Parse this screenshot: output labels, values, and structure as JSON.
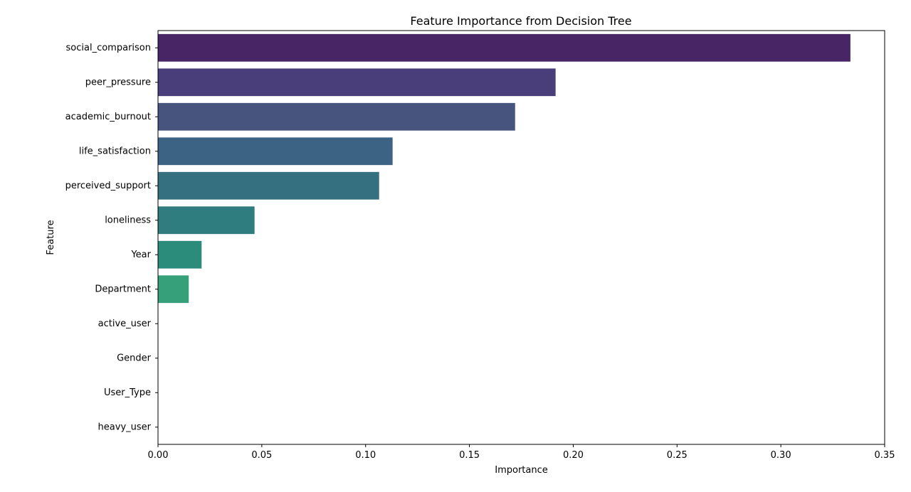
{
  "chart_data": {
    "type": "bar",
    "orientation": "horizontal",
    "title": "Feature Importance from Decision Tree",
    "xlabel": "Importance",
    "ylabel": "Feature",
    "xlim": [
      0,
      0.35
    ],
    "xticks": [
      0.0,
      0.05,
      0.1,
      0.15,
      0.2,
      0.25,
      0.3,
      0.35
    ],
    "xtick_labels": [
      "0.00",
      "0.05",
      "0.10",
      "0.15",
      "0.20",
      "0.25",
      "0.30",
      "0.35"
    ],
    "grid": false,
    "legend": "none",
    "categories": [
      "social_comparison",
      "peer_pressure",
      "academic_burnout",
      "life_satisfaction",
      "perceived_support",
      "loneliness",
      "Year",
      "Department",
      "active_user",
      "Gender",
      "User_Type",
      "heavy_user"
    ],
    "values": [
      0.3335,
      0.1915,
      0.172,
      0.113,
      0.1065,
      0.0465,
      0.021,
      0.0148,
      0,
      0,
      0,
      0
    ],
    "colors": [
      "#482565",
      "#4a3e7a",
      "#46547e",
      "#3d6384",
      "#357081",
      "#307d80",
      "#2c8c7c",
      "#35a07a",
      "#4ab46d",
      "#6fc35b",
      "#9fd14d",
      "#cfdd3f"
    ]
  }
}
